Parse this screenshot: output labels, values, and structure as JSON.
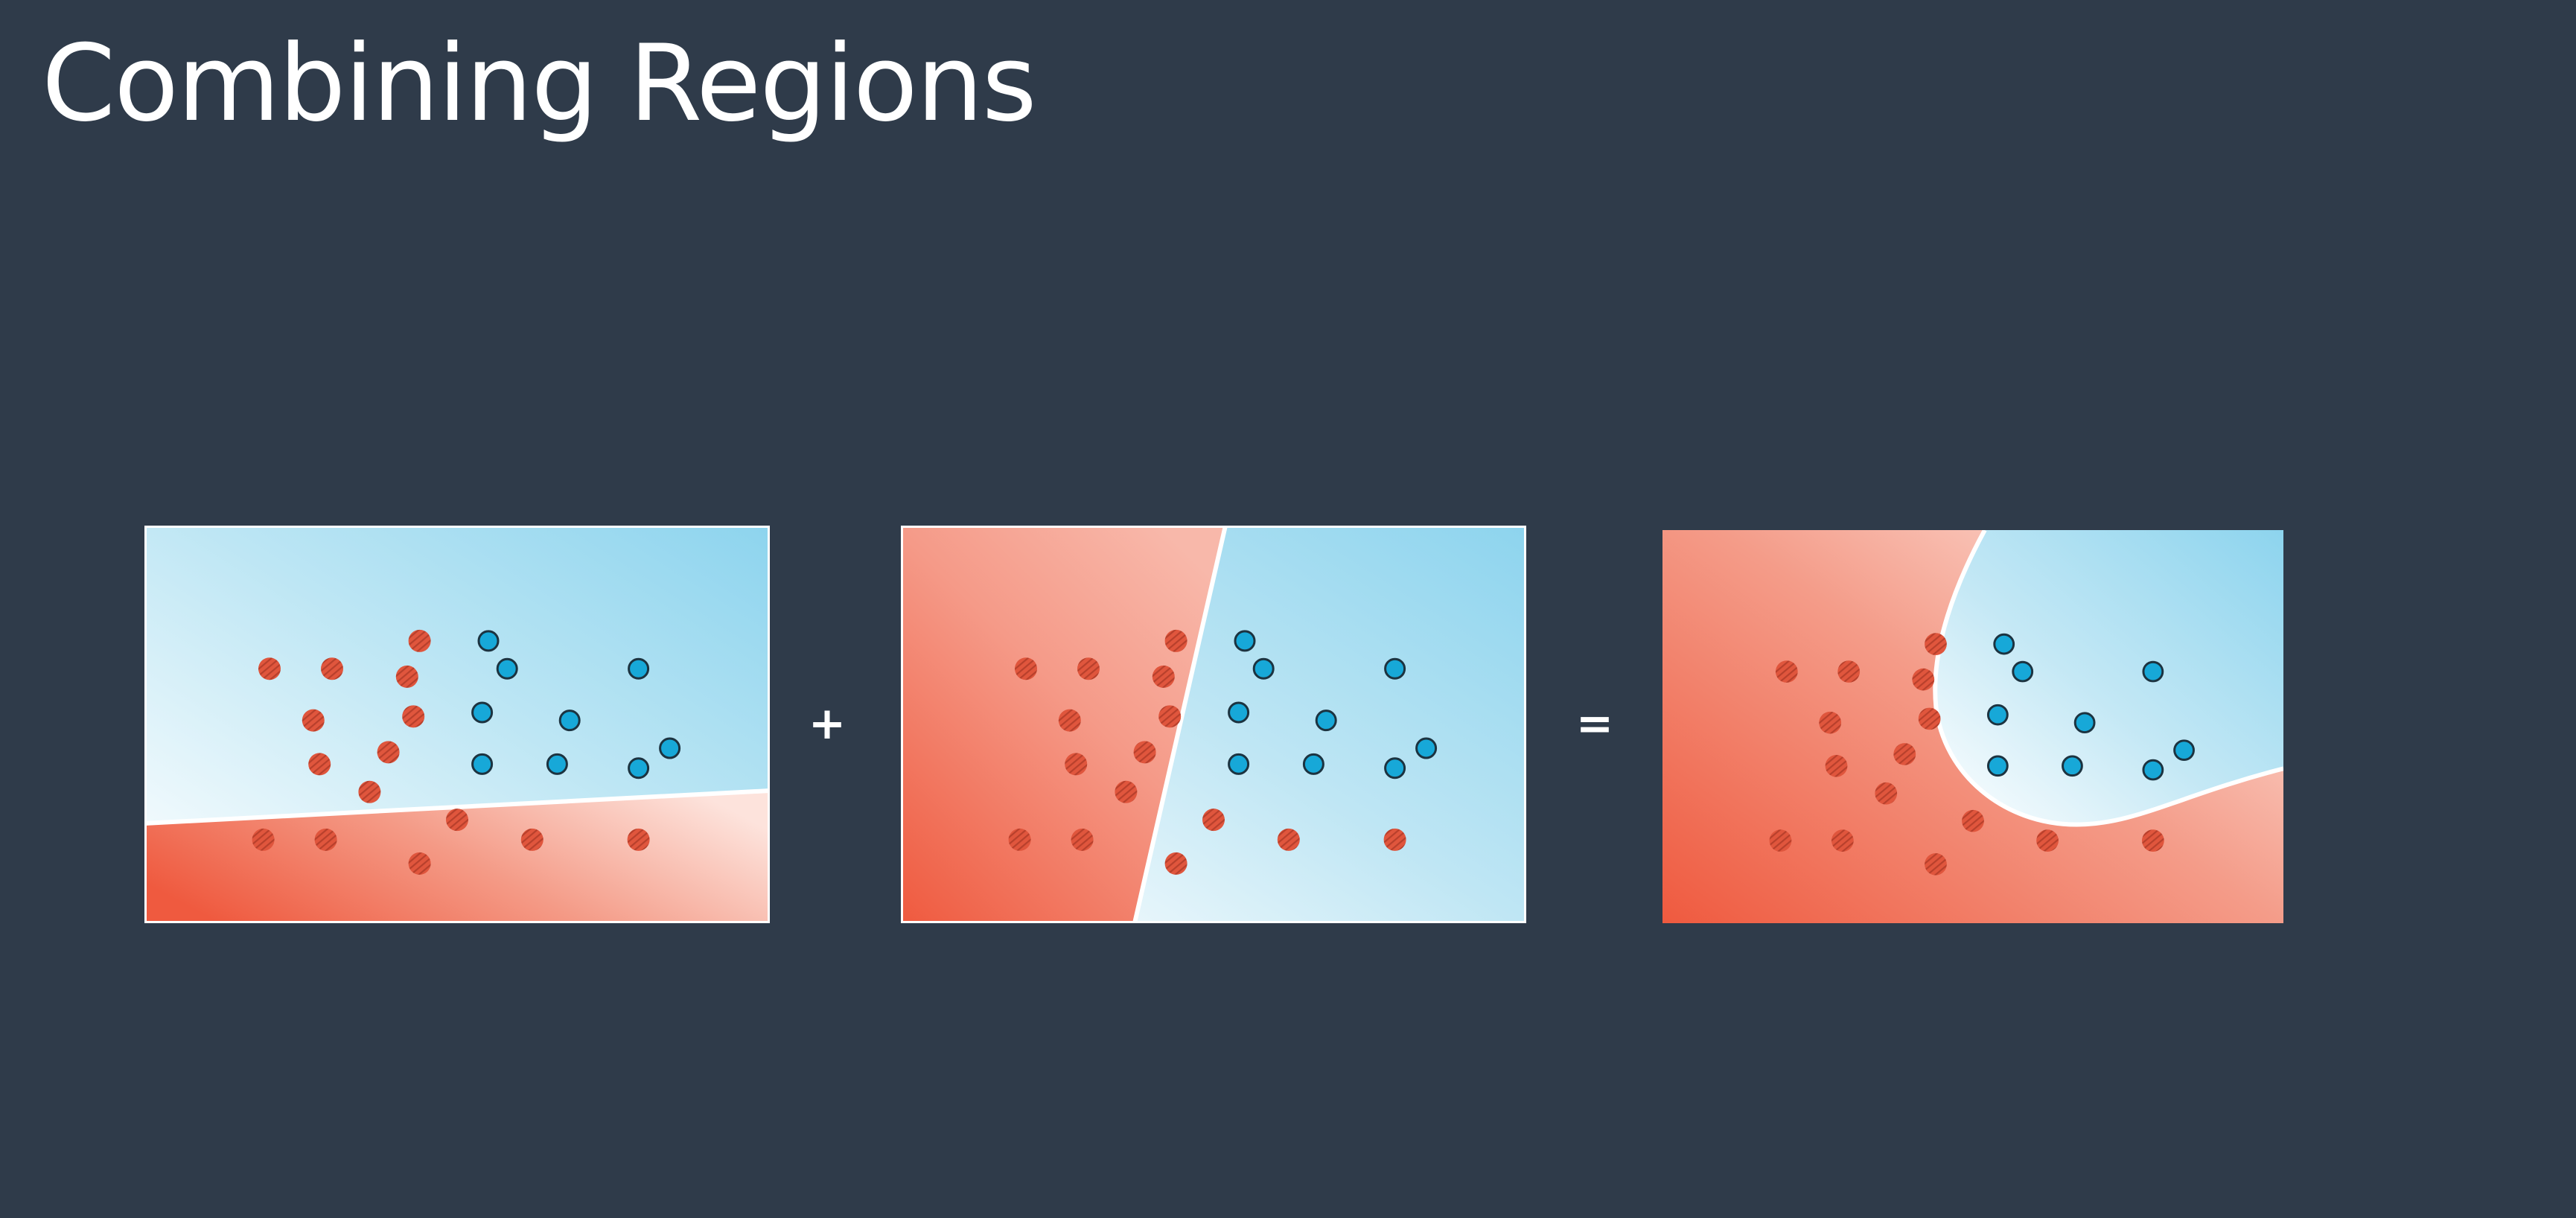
{
  "title": "Combining Regions",
  "operators": {
    "plus": "+",
    "equals": "="
  },
  "colors": {
    "background": "#2f3b4a",
    "red_strong": "#ef5a3f",
    "red_light": "#fde3dc",
    "blue_strong": "#8dd4ee",
    "blue_light": "#ffffff",
    "blue_point": "#17a8d8",
    "red_point": "#e0563d",
    "boundary": "#ffffff"
  },
  "panels": [
    {
      "name": "horizontal-boundary-panel",
      "red_points": [
        [
          2.0,
          6.4
        ],
        [
          3.0,
          6.4
        ],
        [
          4.4,
          7.1
        ],
        [
          4.2,
          6.2
        ],
        [
          2.7,
          5.1
        ],
        [
          4.3,
          5.2
        ],
        [
          2.8,
          4.0
        ],
        [
          3.9,
          4.3
        ],
        [
          3.6,
          3.3
        ],
        [
          1.9,
          2.1
        ],
        [
          2.9,
          2.1
        ],
        [
          4.4,
          1.5
        ],
        [
          5.0,
          2.6
        ],
        [
          6.2,
          2.1
        ],
        [
          7.9,
          2.1
        ]
      ],
      "blue_points": [
        [
          5.5,
          7.1
        ],
        [
          5.8,
          6.4
        ],
        [
          7.9,
          6.4
        ],
        [
          5.4,
          5.3
        ],
        [
          6.8,
          5.1
        ],
        [
          8.4,
          4.4
        ],
        [
          5.4,
          4.0
        ],
        [
          6.6,
          4.0
        ],
        [
          7.9,
          3.9
        ]
      ]
    },
    {
      "name": "slanted-boundary-panel",
      "red_points": [
        [
          2.0,
          6.4
        ],
        [
          3.0,
          6.4
        ],
        [
          4.4,
          7.1
        ],
        [
          4.2,
          6.2
        ],
        [
          2.7,
          5.1
        ],
        [
          4.3,
          5.2
        ],
        [
          2.8,
          4.0
        ],
        [
          3.9,
          4.3
        ],
        [
          3.6,
          3.3
        ],
        [
          1.9,
          2.1
        ],
        [
          2.9,
          2.1
        ],
        [
          4.4,
          1.5
        ],
        [
          5.0,
          2.6
        ],
        [
          6.2,
          2.1
        ],
        [
          7.9,
          2.1
        ]
      ],
      "blue_points": [
        [
          5.5,
          7.1
        ],
        [
          5.8,
          6.4
        ],
        [
          7.9,
          6.4
        ],
        [
          5.4,
          5.3
        ],
        [
          6.8,
          5.1
        ],
        [
          8.4,
          4.4
        ],
        [
          5.4,
          4.0
        ],
        [
          6.6,
          4.0
        ],
        [
          7.9,
          3.9
        ]
      ]
    },
    {
      "name": "combined-boundary-panel",
      "red_points": [
        [
          2.0,
          6.4
        ],
        [
          3.0,
          6.4
        ],
        [
          4.4,
          7.1
        ],
        [
          4.2,
          6.2
        ],
        [
          2.7,
          5.1
        ],
        [
          4.3,
          5.2
        ],
        [
          2.8,
          4.0
        ],
        [
          3.9,
          4.3
        ],
        [
          3.6,
          3.3
        ],
        [
          1.9,
          2.1
        ],
        [
          2.9,
          2.1
        ],
        [
          4.4,
          1.5
        ],
        [
          5.0,
          2.6
        ],
        [
          6.2,
          2.1
        ],
        [
          7.9,
          2.1
        ]
      ],
      "blue_points": [
        [
          5.5,
          7.1
        ],
        [
          5.8,
          6.4
        ],
        [
          7.9,
          6.4
        ],
        [
          5.4,
          5.3
        ],
        [
          6.8,
          5.1
        ],
        [
          8.4,
          4.4
        ],
        [
          5.4,
          4.0
        ],
        [
          6.6,
          4.0
        ],
        [
          7.9,
          3.9
        ]
      ]
    }
  ]
}
